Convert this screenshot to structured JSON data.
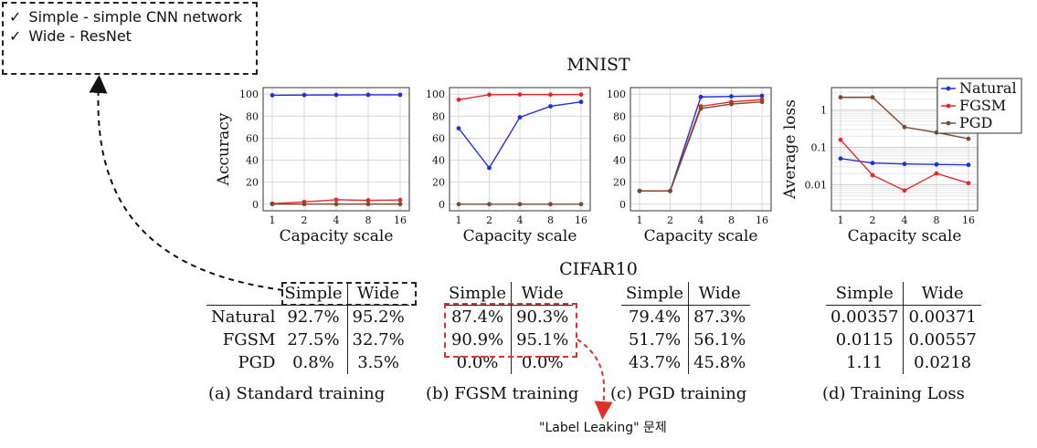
{
  "note": {
    "items": [
      "Simple - simple CNN network",
      "Wide - ResNet"
    ],
    "check": "✓"
  },
  "mnist_title": "MNIST",
  "cifar_title": "CIFAR10",
  "annotation": "\"Label Leaking\" 문제",
  "colors": {
    "natural": "#1f2fe0",
    "fgsm": "#e8262a",
    "pgd": "#7a4a2c",
    "highlight": "#e0302a"
  },
  "chart_data": [
    {
      "type": "line",
      "x": [
        "1",
        "2",
        "4",
        "8",
        "16"
      ],
      "xlabel": "Capacity scale",
      "ylabel": "Accuracy",
      "ylim": [
        0,
        100
      ],
      "yticks": [
        "0",
        "20",
        "40",
        "60",
        "80",
        "100"
      ],
      "series": [
        {
          "key": "natural",
          "values": [
            99,
            99.2,
            99.3,
            99.4,
            99.4
          ]
        },
        {
          "key": "fgsm",
          "values": [
            0.5,
            2,
            4,
            3.5,
            3.8
          ]
        },
        {
          "key": "pgd",
          "values": [
            0.1,
            0.1,
            0.1,
            0.1,
            0.1
          ]
        }
      ]
    },
    {
      "type": "line",
      "x": [
        "1",
        "2",
        "4",
        "8",
        "16"
      ],
      "xlabel": "Capacity scale",
      "ylim": [
        0,
        100
      ],
      "yticks": [
        "0",
        "20",
        "40",
        "60",
        "80",
        "100"
      ],
      "series": [
        {
          "key": "natural",
          "values": [
            69,
            33,
            79,
            89,
            93
          ]
        },
        {
          "key": "fgsm",
          "values": [
            95,
            99.5,
            99.7,
            99.6,
            99.7
          ]
        },
        {
          "key": "pgd",
          "values": [
            0,
            0,
            0,
            0,
            0
          ]
        }
      ]
    },
    {
      "type": "line",
      "x": [
        "1",
        "2",
        "4",
        "8",
        "16"
      ],
      "xlabel": "Capacity scale",
      "ylim": [
        0,
        100
      ],
      "yticks": [
        "0",
        "20",
        "40",
        "60",
        "80",
        "100"
      ],
      "series": [
        {
          "key": "natural",
          "values": [
            12,
            12,
            97.5,
            98,
            98.5
          ]
        },
        {
          "key": "fgsm",
          "values": [
            12,
            12,
            89,
            93,
            95
          ]
        },
        {
          "key": "pgd",
          "values": [
            12,
            12,
            87,
            91,
            93
          ]
        }
      ]
    },
    {
      "type": "line",
      "x": [
        "1",
        "2",
        "4",
        "8",
        "16"
      ],
      "xlabel": "Capacity scale",
      "ylabel": "Average loss",
      "yscale": "log",
      "ylim": [
        0.002,
        4
      ],
      "yticks": [
        "0.01",
        "0.1",
        "1"
      ],
      "legend": {
        "position": "top-right",
        "entries": [
          "Natural",
          "FGSM",
          "PGD"
        ]
      },
      "series": [
        {
          "key": "natural",
          "name": "Natural",
          "values": [
            0.05,
            0.038,
            0.036,
            0.035,
            0.034
          ]
        },
        {
          "key": "fgsm",
          "name": "FGSM",
          "values": [
            0.16,
            0.018,
            0.007,
            0.02,
            0.011
          ]
        },
        {
          "key": "pgd",
          "name": "PGD",
          "values": [
            2.2,
            2.2,
            0.35,
            0.25,
            0.17
          ]
        }
      ]
    }
  ],
  "tables": [
    {
      "headers": [
        "Simple",
        "Wide"
      ],
      "rows": [
        {
          "label": "Natural",
          "values": [
            "92.7%",
            "95.2%"
          ]
        },
        {
          "label": "FGSM",
          "values": [
            "27.5%",
            "32.7%"
          ]
        },
        {
          "label": "PGD",
          "values": [
            "0.8%",
            "3.5%"
          ]
        }
      ],
      "caption": "(a) Standard training"
    },
    {
      "headers": [
        "Simple",
        "Wide"
      ],
      "rows": [
        {
          "values": [
            "87.4%",
            "90.3%"
          ]
        },
        {
          "values": [
            "90.9%",
            "95.1%"
          ]
        },
        {
          "values": [
            "0.0%",
            "0.0%"
          ]
        }
      ],
      "caption": "(b) FGSM training"
    },
    {
      "headers": [
        "Simple",
        "Wide"
      ],
      "rows": [
        {
          "values": [
            "79.4%",
            "87.3%"
          ]
        },
        {
          "values": [
            "51.7%",
            "56.1%"
          ]
        },
        {
          "values": [
            "43.7%",
            "45.8%"
          ]
        }
      ],
      "caption": "(c) PGD training"
    },
    {
      "headers": [
        "Simple",
        "Wide"
      ],
      "rows": [
        {
          "values": [
            "0.00357",
            "0.00371"
          ]
        },
        {
          "values": [
            "0.0115",
            "0.00557"
          ]
        },
        {
          "values": [
            "1.11",
            "0.0218"
          ]
        }
      ],
      "caption": "(d) Training Loss"
    }
  ]
}
